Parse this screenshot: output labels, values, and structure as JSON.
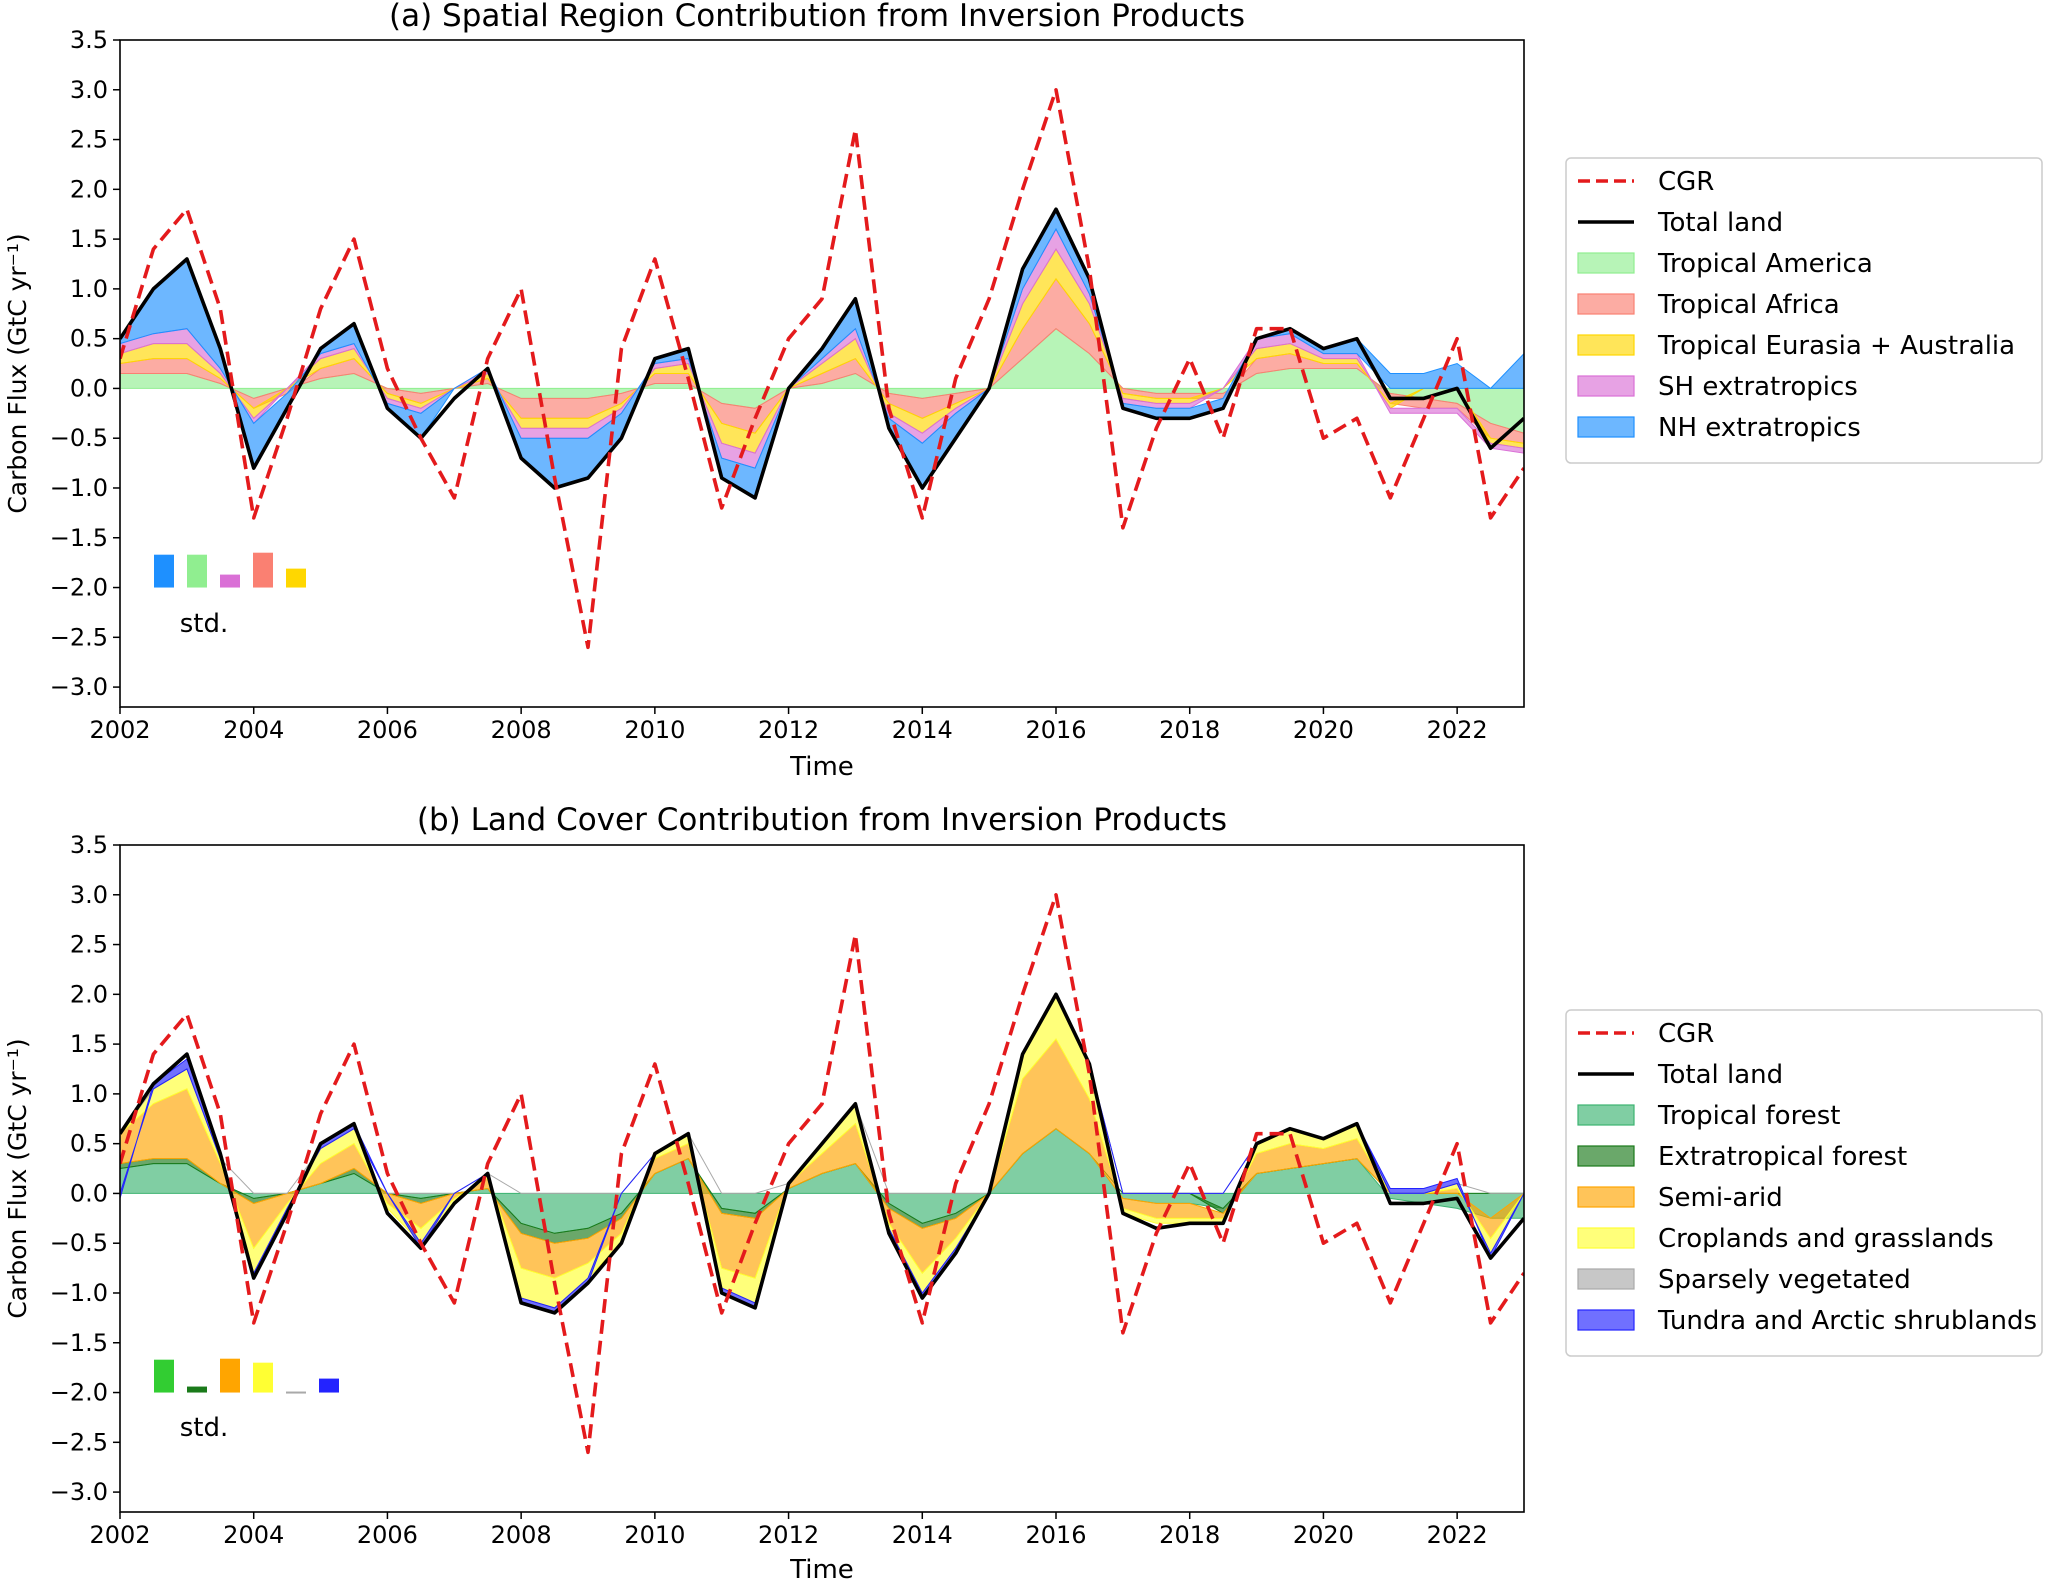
{
  "chart_data": [
    {
      "id": "a",
      "type": "area",
      "title": "(a) Spatial Region Contribution from Inversion Products",
      "xlabel": "Time",
      "ylabel": "Carbon Flux (GtC yr⁻¹)",
      "xlim": [
        2002,
        2023
      ],
      "ylim": [
        -3.2,
        3.5
      ],
      "xticks": [
        2002,
        2004,
        2006,
        2008,
        2010,
        2012,
        2014,
        2016,
        2018,
        2020,
        2022
      ],
      "yticks": [
        -3.0,
        -2.5,
        -2.0,
        -1.5,
        -1.0,
        -0.5,
        0.0,
        0.5,
        1.0,
        1.5,
        2.0,
        2.5,
        3.0,
        3.5
      ],
      "legend_position": "outside-right",
      "x": [
        2002.0,
        2002.5,
        2003.0,
        2003.5,
        2004.0,
        2004.5,
        2005.0,
        2005.5,
        2006.0,
        2006.5,
        2007.0,
        2007.5,
        2008.0,
        2008.5,
        2009.0,
        2009.5,
        2010.0,
        2010.5,
        2011.0,
        2011.5,
        2012.0,
        2012.5,
        2013.0,
        2013.5,
        2014.0,
        2014.5,
        2015.0,
        2015.5,
        2016.0,
        2016.5,
        2017.0,
        2017.5,
        2018.0,
        2018.5,
        2019.0,
        2019.5,
        2020.0,
        2020.5,
        2021.0,
        2021.5,
        2022.0,
        2022.5,
        2023.0
      ],
      "cgr": [
        0.3,
        1.4,
        1.8,
        0.8,
        -1.3,
        -0.3,
        0.8,
        1.5,
        0.2,
        -0.5,
        -1.1,
        0.3,
        1.0,
        -0.9,
        -2.6,
        0.4,
        1.3,
        0.1,
        -1.2,
        -0.3,
        0.5,
        0.9,
        2.6,
        -0.2,
        -1.3,
        0.1,
        0.9,
        2.0,
        3.0,
        1.2,
        -1.4,
        -0.4,
        0.3,
        -0.5,
        0.6,
        0.6,
        -0.5,
        -0.3,
        -1.1,
        -0.3,
        0.5,
        -1.3,
        -0.8
      ],
      "total_land": [
        0.5,
        1.0,
        1.3,
        0.4,
        -0.8,
        -0.2,
        0.4,
        0.65,
        -0.2,
        -0.5,
        -0.1,
        0.2,
        -0.7,
        -1.0,
        -0.9,
        -0.5,
        0.3,
        0.4,
        -0.9,
        -1.1,
        0.0,
        0.4,
        0.9,
        -0.4,
        -1.0,
        -0.5,
        0.0,
        1.2,
        1.8,
        1.1,
        -0.2,
        -0.3,
        -0.3,
        -0.2,
        0.5,
        0.6,
        0.4,
        0.5,
        -0.1,
        -0.1,
        0.0,
        -0.6,
        -0.3
      ],
      "series": [
        {
          "name": "Tropical America",
          "color": "#90ee90",
          "values": [
            0.15,
            0.15,
            0.15,
            0.05,
            -0.1,
            0.0,
            0.1,
            0.15,
            0.0,
            -0.05,
            0.0,
            0.05,
            -0.1,
            -0.1,
            -0.1,
            -0.05,
            0.05,
            0.05,
            -0.15,
            -0.2,
            0.0,
            0.05,
            0.15,
            -0.05,
            -0.1,
            -0.05,
            0.0,
            0.3,
            0.6,
            0.35,
            0.0,
            -0.05,
            -0.05,
            -0.05,
            0.15,
            0.2,
            0.2,
            0.2,
            -0.05,
            -0.1,
            -0.15,
            -0.35,
            -0.45
          ]
        },
        {
          "name": "Tropical Africa",
          "color": "#fa8072",
          "values": [
            0.1,
            0.15,
            0.15,
            0.05,
            -0.1,
            -0.05,
            0.1,
            0.15,
            -0.05,
            -0.1,
            0.0,
            0.05,
            -0.2,
            -0.2,
            -0.2,
            -0.1,
            0.1,
            0.1,
            -0.2,
            -0.25,
            0.0,
            0.1,
            0.15,
            -0.1,
            -0.2,
            -0.1,
            0.0,
            0.3,
            0.5,
            0.3,
            -0.05,
            -0.05,
            -0.05,
            -0.05,
            0.15,
            0.15,
            0.05,
            0.05,
            -0.1,
            -0.1,
            -0.05,
            -0.15,
            -0.1
          ]
        },
        {
          "name": "Tropical Eurasia + Australia",
          "color": "#ffd700",
          "values": [
            0.1,
            0.15,
            0.15,
            0.05,
            -0.1,
            0.0,
            0.1,
            0.1,
            -0.05,
            -0.05,
            0.0,
            0.05,
            -0.1,
            -0.1,
            -0.1,
            -0.05,
            0.05,
            0.1,
            -0.2,
            -0.2,
            0.0,
            0.1,
            0.2,
            -0.1,
            -0.15,
            -0.05,
            0.0,
            0.25,
            0.3,
            0.2,
            -0.05,
            -0.05,
            -0.05,
            0.0,
            0.1,
            0.1,
            0.05,
            0.05,
            -0.05,
            0.0,
            0.0,
            -0.05,
            -0.05
          ]
        },
        {
          "name": "SH extratropics",
          "color": "#da70d6",
          "values": [
            0.1,
            0.1,
            0.15,
            0.05,
            -0.05,
            0.0,
            0.05,
            0.05,
            -0.05,
            -0.05,
            0.0,
            0.05,
            -0.1,
            -0.1,
            -0.1,
            -0.05,
            0.05,
            0.05,
            -0.15,
            -0.15,
            0.0,
            0.05,
            0.1,
            -0.05,
            -0.1,
            -0.05,
            0.0,
            0.15,
            0.2,
            0.1,
            -0.05,
            -0.05,
            -0.05,
            0.0,
            0.1,
            0.1,
            0.05,
            0.05,
            -0.05,
            -0.05,
            -0.05,
            -0.05,
            -0.05
          ]
        },
        {
          "name": "NH extratropics",
          "color": "#1e90ff",
          "values": [
            0.05,
            0.45,
            0.7,
            0.2,
            -0.45,
            -0.15,
            0.05,
            0.2,
            -0.05,
            -0.25,
            0.0,
            0.0,
            -0.2,
            -0.5,
            -0.4,
            -0.25,
            0.05,
            0.1,
            -0.2,
            -0.3,
            0.0,
            0.1,
            0.3,
            -0.1,
            -0.45,
            -0.25,
            0.0,
            0.2,
            0.2,
            0.15,
            -0.05,
            -0.1,
            -0.1,
            -0.1,
            0.0,
            0.05,
            0.05,
            0.15,
            0.15,
            0.15,
            0.25,
            0.0,
            0.35
          ]
        }
      ],
      "std": {
        "label": "std.",
        "bars": [
          {
            "color": "#1e90ff",
            "value": 0.33
          },
          {
            "color": "#90ee90",
            "value": 0.33
          },
          {
            "color": "#da70d6",
            "value": 0.13
          },
          {
            "color": "#fa8072",
            "value": 0.35
          },
          {
            "color": "#ffd700",
            "value": 0.19
          }
        ]
      },
      "legend": [
        {
          "label": "CGR",
          "kind": "dashed",
          "color": "#e41a1c"
        },
        {
          "label": "Total land",
          "kind": "line",
          "color": "#000000"
        },
        {
          "label": "Tropical America",
          "kind": "patch",
          "color": "#90ee90"
        },
        {
          "label": "Tropical Africa",
          "kind": "patch",
          "color": "#fa8072"
        },
        {
          "label": "Tropical Eurasia + Australia",
          "kind": "patch",
          "color": "#ffd700"
        },
        {
          "label": "SH extratropics",
          "kind": "patch",
          "color": "#da70d6"
        },
        {
          "label": "NH extratropics",
          "kind": "patch",
          "color": "#1e90ff"
        }
      ]
    },
    {
      "id": "b",
      "type": "area",
      "title": "(b) Land Cover Contribution from Inversion Products",
      "xlabel": "Time",
      "ylabel": "Carbon Flux (GtC yr⁻¹)",
      "xlim": [
        2002,
        2023
      ],
      "ylim": [
        -3.2,
        3.5
      ],
      "xticks": [
        2002,
        2004,
        2006,
        2008,
        2010,
        2012,
        2014,
        2016,
        2018,
        2020,
        2022
      ],
      "yticks": [
        -3.0,
        -2.5,
        -2.0,
        -1.5,
        -1.0,
        -0.5,
        0.0,
        0.5,
        1.0,
        1.5,
        2.0,
        2.5,
        3.0,
        3.5
      ],
      "legend_position": "outside-right",
      "x": [
        2002.0,
        2002.5,
        2003.0,
        2003.5,
        2004.0,
        2004.5,
        2005.0,
        2005.5,
        2006.0,
        2006.5,
        2007.0,
        2007.5,
        2008.0,
        2008.5,
        2009.0,
        2009.5,
        2010.0,
        2010.5,
        2011.0,
        2011.5,
        2012.0,
        2012.5,
        2013.0,
        2013.5,
        2014.0,
        2014.5,
        2015.0,
        2015.5,
        2016.0,
        2016.5,
        2017.0,
        2017.5,
        2018.0,
        2018.5,
        2019.0,
        2019.5,
        2020.0,
        2020.5,
        2021.0,
        2021.5,
        2022.0,
        2022.5,
        2023.0
      ],
      "cgr": [
        0.3,
        1.4,
        1.8,
        0.8,
        -1.3,
        -0.3,
        0.8,
        1.5,
        0.2,
        -0.5,
        -1.1,
        0.3,
        1.0,
        -0.9,
        -2.6,
        0.4,
        1.3,
        0.1,
        -1.2,
        -0.3,
        0.5,
        0.9,
        2.6,
        -0.2,
        -1.3,
        0.1,
        0.9,
        2.0,
        3.0,
        1.2,
        -1.4,
        -0.4,
        0.3,
        -0.5,
        0.6,
        0.6,
        -0.5,
        -0.3,
        -1.1,
        -0.3,
        0.5,
        -1.3,
        -0.8
      ],
      "total_land": [
        0.6,
        1.1,
        1.4,
        0.4,
        -0.85,
        -0.2,
        0.5,
        0.7,
        -0.2,
        -0.55,
        -0.1,
        0.2,
        -1.1,
        -1.2,
        -0.9,
        -0.5,
        0.4,
        0.6,
        -1.0,
        -1.15,
        0.1,
        0.5,
        0.9,
        -0.4,
        -1.05,
        -0.6,
        0.0,
        1.4,
        2.0,
        1.3,
        -0.2,
        -0.35,
        -0.3,
        -0.3,
        0.5,
        0.65,
        0.55,
        0.7,
        -0.1,
        -0.1,
        -0.05,
        -0.65,
        -0.25
      ],
      "series": [
        {
          "name": "Tropical forest",
          "color": "#3cb371",
          "values": [
            0.25,
            0.3,
            0.3,
            0.1,
            -0.05,
            0.0,
            0.1,
            0.2,
            0.0,
            -0.05,
            0.0,
            0.05,
            -0.3,
            -0.4,
            -0.35,
            -0.2,
            0.2,
            0.35,
            -0.15,
            -0.2,
            0.05,
            0.2,
            0.3,
            -0.1,
            -0.3,
            -0.2,
            0.0,
            0.4,
            0.65,
            0.4,
            -0.05,
            -0.1,
            -0.1,
            -0.15,
            0.2,
            0.25,
            0.3,
            0.35,
            -0.05,
            -0.1,
            -0.15,
            -0.25,
            -0.25
          ]
        },
        {
          "name": "Extratropical forest",
          "color": "#1a7a1a",
          "values": [
            0.05,
            0.05,
            0.05,
            0.0,
            -0.05,
            0.0,
            0.0,
            0.05,
            0.0,
            -0.05,
            0.0,
            0.0,
            -0.1,
            -0.1,
            -0.1,
            -0.05,
            0.0,
            0.0,
            -0.05,
            -0.05,
            0.0,
            0.0,
            0.0,
            -0.05,
            -0.05,
            -0.05,
            0.0,
            0.0,
            0.0,
            0.0,
            0.0,
            0.0,
            0.0,
            -0.05,
            0.0,
            0.0,
            0.0,
            0.0,
            0.0,
            0.0,
            0.0,
            0.0,
            0.0
          ]
        },
        {
          "name": "Semi-arid",
          "color": "#ffa500",
          "values": [
            0.3,
            0.55,
            0.7,
            0.2,
            -0.45,
            -0.1,
            0.2,
            0.25,
            -0.1,
            -0.25,
            -0.05,
            0.1,
            -0.35,
            -0.35,
            -0.25,
            -0.15,
            0.15,
            0.15,
            -0.55,
            -0.6,
            0.05,
            0.2,
            0.4,
            -0.15,
            -0.45,
            -0.2,
            0.0,
            0.75,
            0.9,
            0.55,
            -0.1,
            -0.15,
            -0.15,
            -0.05,
            0.2,
            0.25,
            0.15,
            0.2,
            0.0,
            0.0,
            0.05,
            -0.2,
            0.0
          ]
        },
        {
          "name": "Croplands and grasslands",
          "color": "#ffff33",
          "values": [
            0.0,
            0.15,
            0.2,
            0.05,
            -0.25,
            -0.05,
            0.15,
            0.15,
            -0.05,
            -0.15,
            -0.05,
            0.05,
            -0.3,
            -0.3,
            -0.15,
            -0.1,
            0.05,
            0.1,
            -0.2,
            -0.25,
            0.0,
            0.1,
            0.2,
            -0.05,
            -0.2,
            -0.1,
            0.0,
            0.25,
            0.45,
            0.35,
            -0.05,
            -0.05,
            -0.05,
            -0.05,
            0.1,
            0.15,
            0.1,
            0.15,
            0.0,
            0.0,
            0.05,
            -0.15,
            0.0
          ]
        },
        {
          "name": "Sparsely vegetated",
          "color": "#a9a9a9",
          "values": [
            0.0,
            0.0,
            0.0,
            0.0,
            0.0,
            0.0,
            0.0,
            0.0,
            0.0,
            0.0,
            0.0,
            0.0,
            0.0,
            0.0,
            0.0,
            0.0,
            0.0,
            0.0,
            0.0,
            0.0,
            0.0,
            0.0,
            0.0,
            0.0,
            0.0,
            0.0,
            0.0,
            0.0,
            0.0,
            0.0,
            0.0,
            0.0,
            0.0,
            0.0,
            0.0,
            0.0,
            0.0,
            0.0,
            0.0,
            0.0,
            0.0,
            0.0,
            0.0
          ]
        },
        {
          "name": "Tundra and Arctic shrublands",
          "color": "#2323ff",
          "values": [
            -0.05,
            0.05,
            0.1,
            0.05,
            -0.05,
            -0.05,
            0.05,
            0.05,
            0.0,
            -0.05,
            0.0,
            0.0,
            -0.05,
            -0.05,
            -0.05,
            0.0,
            0.0,
            0.0,
            -0.05,
            -0.05,
            0.0,
            0.0,
            0.0,
            -0.05,
            -0.05,
            -0.05,
            0.0,
            0.0,
            0.0,
            0.0,
            0.0,
            0.0,
            0.0,
            0.0,
            0.0,
            0.0,
            0.0,
            0.0,
            0.05,
            0.05,
            0.05,
            -0.05,
            0.0
          ]
        }
      ],
      "std": {
        "label": "std.",
        "bars": [
          {
            "color": "#32cd32",
            "value": 0.33
          },
          {
            "color": "#1a7a1a",
            "value": 0.06
          },
          {
            "color": "#ffa500",
            "value": 0.34
          },
          {
            "color": "#ffff33",
            "value": 0.3
          },
          {
            "color": "#a9a9a9",
            "value": 0.01
          },
          {
            "color": "#2323ff",
            "value": 0.14
          }
        ]
      },
      "legend": [
        {
          "label": "CGR",
          "kind": "dashed",
          "color": "#e41a1c"
        },
        {
          "label": "Total land",
          "kind": "line",
          "color": "#000000"
        },
        {
          "label": "Tropical forest",
          "kind": "patch",
          "color": "#3cb371"
        },
        {
          "label": "Extratropical forest",
          "kind": "patch",
          "color": "#1a7a1a"
        },
        {
          "label": "Semi-arid",
          "kind": "patch",
          "color": "#ffa500"
        },
        {
          "label": "Croplands and grasslands",
          "kind": "patch",
          "color": "#ffff33"
        },
        {
          "label": "Sparsely vegetated",
          "kind": "patch",
          "color": "#a9a9a9"
        },
        {
          "label": "Tundra and Arctic shrublands",
          "kind": "patch",
          "color": "#2323ff"
        }
      ]
    }
  ]
}
